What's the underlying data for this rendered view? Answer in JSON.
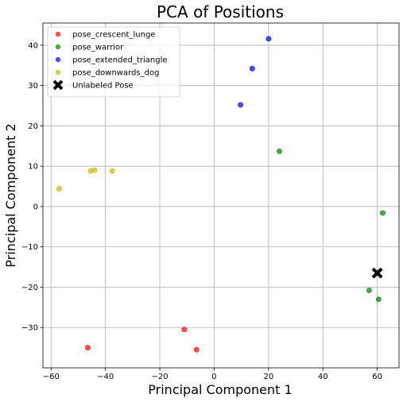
{
  "chart_data": {
    "type": "scatter",
    "title": "PCA of Positions",
    "xlabel": "Principal Component 1",
    "ylabel": "Principal Component 2",
    "xlim": [
      -63,
      68
    ],
    "ylim": [
      -40,
      45.5
    ],
    "xticks": [
      -60,
      -40,
      -20,
      0,
      20,
      40,
      60
    ],
    "yticks": [
      -30,
      -20,
      -10,
      0,
      10,
      20,
      30,
      40
    ],
    "grid": true,
    "legend_position": "top-left",
    "series": [
      {
        "name": "pose_crescent_lunge",
        "color": "#ff0000",
        "marker": "circle",
        "points": [
          [
            -46.5,
            -35
          ],
          [
            -11,
            -30.5
          ],
          [
            -6.5,
            -35.5
          ]
        ]
      },
      {
        "name": "pose_warrior",
        "color": "#008000",
        "marker": "circle",
        "points": [
          [
            24,
            13.7
          ],
          [
            62,
            -1.6
          ],
          [
            57,
            -20.8
          ],
          [
            60.5,
            -23
          ]
        ]
      },
      {
        "name": "pose_extended_triangle",
        "color": "#0000ff",
        "marker": "circle",
        "points": [
          [
            20,
            41.6
          ],
          [
            14,
            34.2
          ],
          [
            9.7,
            25.2
          ]
        ]
      },
      {
        "name": "pose_downwards_dog",
        "color": "#bfbf00",
        "marker": "circle",
        "points": [
          [
            -57,
            4.4
          ],
          [
            -45.5,
            8.8
          ],
          [
            -44,
            9
          ],
          [
            -37.5,
            8.8
          ]
        ]
      },
      {
        "name": "Unlabeled Pose",
        "color": "#000000",
        "marker": "x",
        "points": [
          [
            60,
            -16.5
          ]
        ]
      }
    ]
  }
}
